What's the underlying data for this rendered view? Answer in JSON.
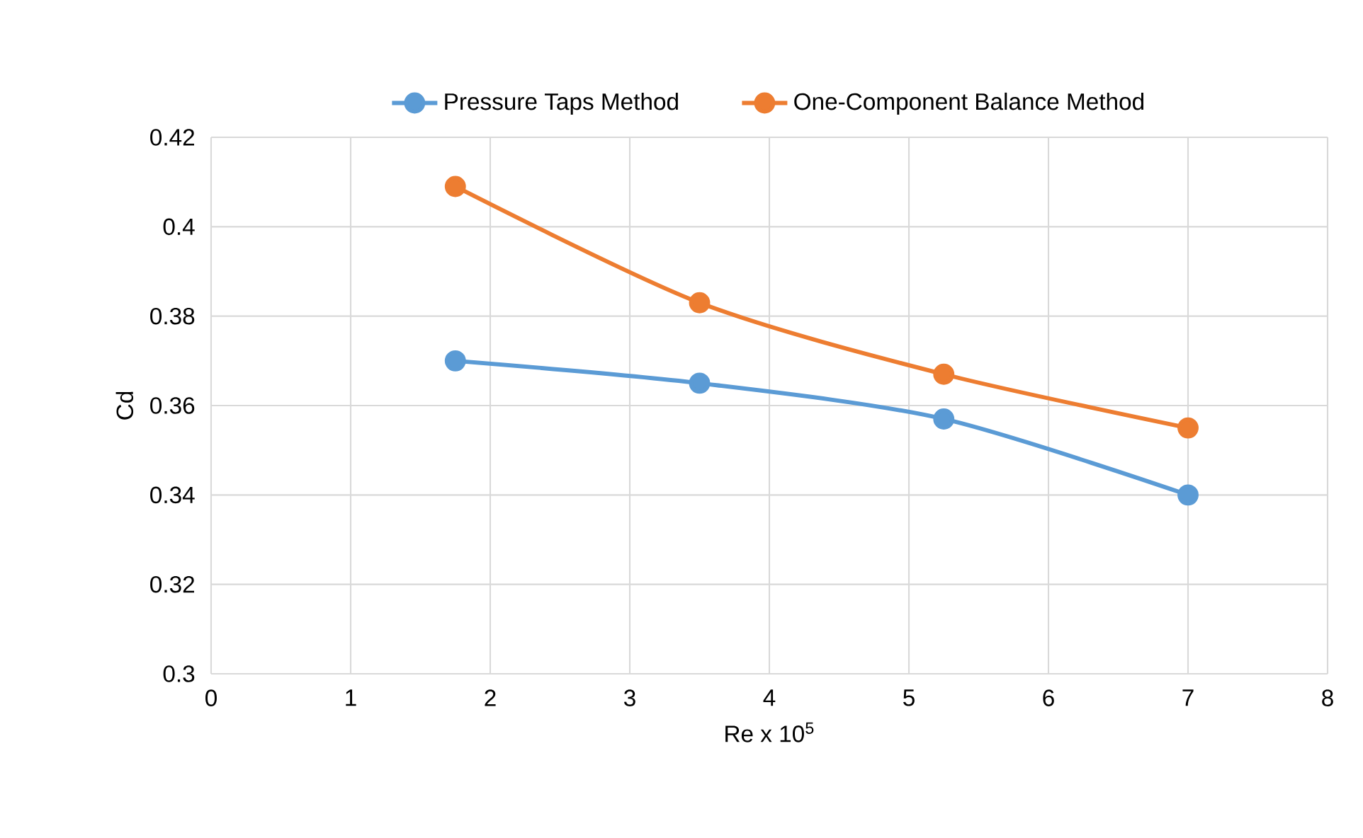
{
  "chart_data": {
    "type": "line",
    "xlabel": "Re x 10$^{5}$",
    "ylabel": "Cd",
    "x": [
      1.75,
      3.5,
      5.25,
      7
    ],
    "series": [
      {
        "name": "Pressure Taps Method",
        "color": "#5b9bd5",
        "values": [
          0.37,
          0.365,
          0.357,
          0.34
        ]
      },
      {
        "name": "One-Component Balance Method",
        "color": "#ed7d31",
        "values": [
          0.409,
          0.383,
          0.367,
          0.355
        ]
      }
    ],
    "xlim": [
      0,
      8
    ],
    "xticks": [
      0,
      1,
      2,
      3,
      4,
      5,
      6,
      7,
      8
    ],
    "ylim": [
      0.3,
      0.42
    ],
    "yticks": [
      {
        "value": 0.3,
        "label": "0.3"
      },
      0.32,
      0.34,
      0.36,
      0.38,
      {
        "value": 0.4,
        "label": "0.4"
      },
      0.42
    ],
    "grid": true,
    "legend": "top",
    "marker": "circle",
    "line_style": "solid"
  }
}
